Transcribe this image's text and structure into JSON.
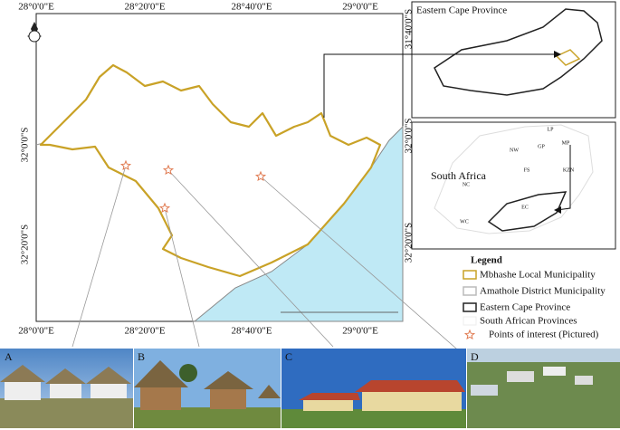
{
  "map": {
    "top_labels": [
      "28°0'0\"E",
      "28°20'0\"E",
      "28°40'0\"E",
      "29°0'0\"E"
    ],
    "bottom_labels": [
      "28°0'0\"E",
      "28°20'0\"E",
      "28°40'0\"E",
      "29°0'0\"E"
    ],
    "left_labels": [
      "32°0'0\"S",
      "32°20'0\"S"
    ],
    "right_labels": [
      "31°40'0\"S",
      "32°0'0\"S",
      "32°20'0\"S"
    ]
  },
  "inset_ec": {
    "title": "Eastern Cape Province"
  },
  "inset_sa": {
    "title": "South Africa",
    "provinces": [
      "LP",
      "MP",
      "GP",
      "NW",
      "FS",
      "KZN",
      "NC",
      "WC",
      "EC"
    ]
  },
  "legend": {
    "title": "Legend",
    "items": [
      "Mbhashe Local Municipality",
      "Amathole District Municipality",
      "Eastern Cape Province",
      "South African Provinces",
      "Points of interest (Pictured)"
    ]
  },
  "photos": [
    "A",
    "B",
    "C",
    "D"
  ]
}
